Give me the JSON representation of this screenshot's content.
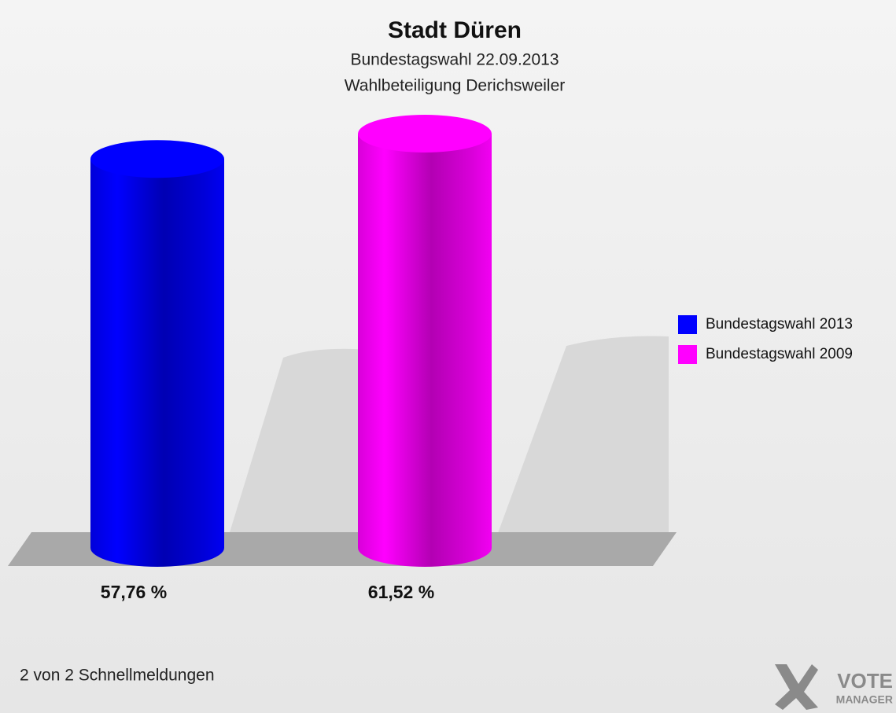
{
  "chart_data": {
    "type": "cylinder",
    "title": "Stadt Düren",
    "subtitle": [
      "Bundestagswahl 22.09.2013",
      "Wahlbeteiligung Derichsweiler"
    ],
    "series": [
      {
        "name": "Bundestagswahl 2013",
        "color": "#0000ff",
        "values": [
          57.76
        ],
        "value_labels": [
          "57,76 %"
        ]
      },
      {
        "name": "Bundestagswahl 2009",
        "color": "#ff00ff",
        "values": [
          61.52
        ],
        "value_labels": [
          "61,52 %"
        ]
      }
    ],
    "footnote": "2 von 2 Schnellmeldungen",
    "logo": [
      "VOTE",
      "MANAGER"
    ]
  }
}
